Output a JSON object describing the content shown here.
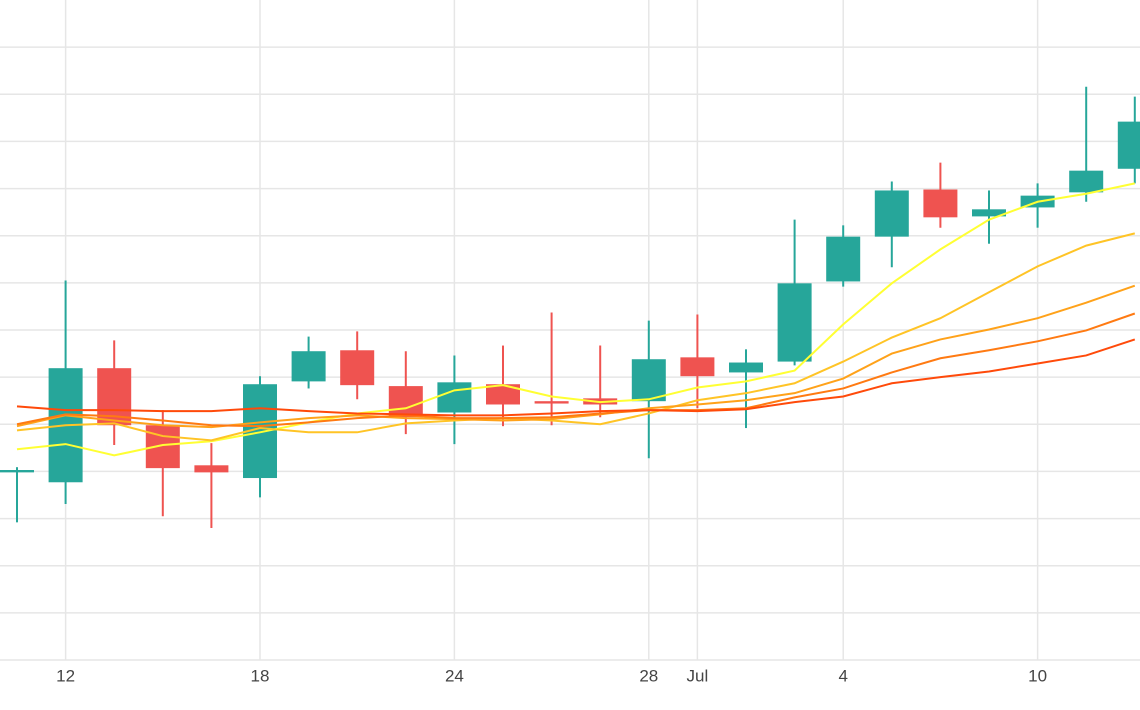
{
  "chart_data": {
    "type": "candlestick",
    "categories": [
      null,
      "12",
      null,
      null,
      null,
      "18",
      null,
      null,
      null,
      "24",
      null,
      null,
      null,
      "28",
      "Jul",
      null,
      null,
      "4",
      null,
      null,
      null,
      "10",
      null,
      null
    ],
    "open": [
      3.98,
      3.77,
      6.19,
      4.98,
      4.13,
      3.86,
      5.91,
      6.57,
      5.81,
      5.25,
      5.85,
      5.49,
      5.55,
      5.49,
      6.42,
      6.1,
      6.33,
      8.03,
      8.98,
      9.98,
      9.41,
      9.6,
      9.92,
      10.42
    ],
    "high": [
      4.09,
      8.05,
      6.78,
      5.3,
      4.6,
      6.02,
      6.86,
      6.97,
      6.55,
      6.46,
      6.67,
      7.37,
      6.67,
      7.2,
      7.33,
      6.59,
      9.34,
      9.22,
      10.15,
      10.55,
      9.96,
      10.11,
      12.16,
      11.95
    ],
    "low": [
      2.92,
      3.31,
      4.56,
      3.05,
      2.8,
      3.45,
      5.76,
      5.53,
      4.79,
      4.58,
      4.96,
      4.98,
      5.15,
      4.28,
      5.34,
      4.92,
      6.25,
      7.92,
      8.33,
      9.17,
      8.83,
      9.17,
      9.72,
      10.11
    ],
    "close": [
      4.03,
      6.19,
      4.98,
      4.07,
      3.98,
      5.85,
      6.55,
      5.83,
      5.15,
      5.89,
      5.42,
      5.44,
      5.42,
      6.38,
      6.02,
      6.31,
      7.99,
      8.98,
      9.96,
      9.39,
      9.56,
      9.85,
      10.38,
      11.42
    ],
    "up_color": "#26a69a",
    "down_color": "#ef5350",
    "overlays": [
      {
        "color": "#ffff33",
        "values": [
          4.47,
          4.58,
          4.34,
          4.56,
          4.64,
          4.83,
          5.04,
          5.23,
          5.34,
          5.72,
          5.83,
          5.59,
          5.47,
          5.53,
          5.78,
          5.91,
          6.14,
          7.12,
          7.99,
          8.71,
          9.34,
          9.72,
          9.89,
          10.11
        ]
      },
      {
        "color": "#ffc426",
        "values": [
          4.87,
          4.98,
          5.02,
          4.75,
          4.66,
          4.92,
          4.83,
          4.83,
          5.02,
          5.08,
          5.13,
          5.08,
          5.0,
          5.23,
          5.51,
          5.66,
          5.87,
          6.33,
          6.84,
          7.25,
          7.8,
          8.35,
          8.79,
          9.05
        ]
      },
      {
        "color": "#ffa21a",
        "values": [
          4.96,
          5.19,
          5.08,
          4.98,
          4.94,
          5.04,
          5.13,
          5.19,
          5.13,
          5.11,
          5.08,
          5.11,
          5.21,
          5.34,
          5.42,
          5.51,
          5.66,
          5.97,
          6.5,
          6.8,
          7.01,
          7.25,
          7.58,
          7.94
        ]
      },
      {
        "color": "#ff7a12",
        "values": [
          5.0,
          5.21,
          5.17,
          5.08,
          4.98,
          4.96,
          5.04,
          5.13,
          5.19,
          5.13,
          5.13,
          5.15,
          5.23,
          5.3,
          5.3,
          5.34,
          5.57,
          5.76,
          6.1,
          6.4,
          6.57,
          6.76,
          6.99,
          7.35
        ]
      },
      {
        "color": "#ff4a0a",
        "values": [
          5.38,
          5.3,
          5.3,
          5.28,
          5.28,
          5.34,
          5.28,
          5.23,
          5.21,
          5.19,
          5.19,
          5.23,
          5.28,
          5.3,
          5.28,
          5.32,
          5.47,
          5.59,
          5.87,
          6.0,
          6.12,
          6.29,
          6.46,
          6.8
        ]
      }
    ],
    "ylim": [
      0,
      14
    ],
    "yticks": [
      0,
      1,
      2,
      3,
      4,
      5,
      6,
      7,
      8,
      9,
      10,
      11,
      12,
      13
    ],
    "grid": true
  }
}
